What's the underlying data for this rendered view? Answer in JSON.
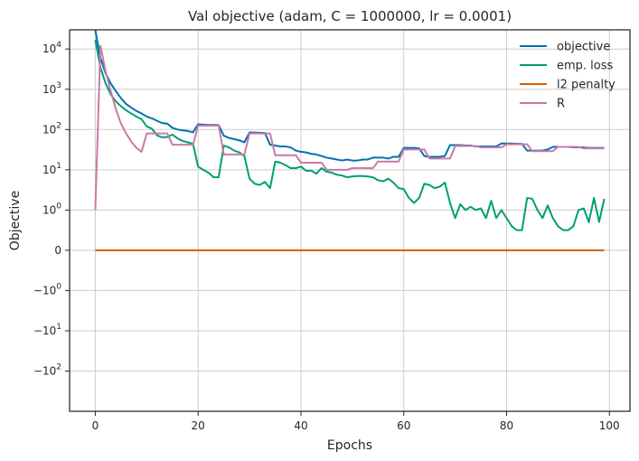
{
  "chart_data": {
    "type": "line",
    "title": "Val objective (adam, C = 1000000, lr = 0.0001)",
    "xlabel": "Epochs",
    "ylabel": "Objective",
    "xlim": [
      -5,
      104
    ],
    "ylim": [
      -1000,
      30000
    ],
    "yscale": "symlog",
    "symlog_linthresh": 1,
    "grid": true,
    "legend_position": "top-right",
    "x_ticks": [
      {
        "value": 0,
        "label": "0"
      },
      {
        "value": 20,
        "label": "20"
      },
      {
        "value": 40,
        "label": "40"
      },
      {
        "value": 60,
        "label": "60"
      },
      {
        "value": 80,
        "label": "80"
      },
      {
        "value": 100,
        "label": "100"
      }
    ],
    "y_ticks": [
      {
        "value": 10000,
        "label": "10",
        "exp": "4",
        "neg": false
      },
      {
        "value": 1000,
        "label": "10",
        "exp": "3",
        "neg": false
      },
      {
        "value": 100,
        "label": "10",
        "exp": "2",
        "neg": false
      },
      {
        "value": 10,
        "label": "10",
        "exp": "1",
        "neg": false
      },
      {
        "value": 1,
        "label": "10",
        "exp": "0",
        "neg": false
      },
      {
        "value": 0,
        "label": "0",
        "exp": "",
        "neg": false
      },
      {
        "value": -1,
        "label": "10",
        "exp": "0",
        "neg": true
      },
      {
        "value": -10,
        "label": "10",
        "exp": "1",
        "neg": true
      },
      {
        "value": -100,
        "label": "10",
        "exp": "2",
        "neg": true
      }
    ],
    "series": [
      {
        "name": "objective",
        "color": "#0072b2",
        "x": [
          0,
          1,
          2,
          3,
          4,
          5,
          6,
          7,
          8,
          9,
          10,
          11,
          12,
          13,
          14,
          15,
          16,
          17,
          18,
          19,
          20,
          21,
          22,
          23,
          24,
          25,
          26,
          27,
          28,
          29,
          30,
          31,
          32,
          33,
          34,
          35,
          36,
          37,
          38,
          39,
          40,
          41,
          42,
          43,
          44,
          45,
          46,
          47,
          48,
          49,
          50,
          51,
          52,
          53,
          54,
          55,
          56,
          57,
          58,
          59,
          60,
          61,
          62,
          63,
          64,
          65,
          66,
          67,
          68,
          69,
          70,
          71,
          72,
          73,
          74,
          75,
          76,
          77,
          78,
          79,
          80,
          81,
          82,
          83,
          84,
          85,
          86,
          87,
          88,
          89,
          90,
          91,
          92,
          93,
          94,
          95,
          96,
          97,
          98,
          99
        ],
        "values": [
          30000,
          6000,
          2500,
          1400,
          900,
          600,
          430,
          350,
          290,
          250,
          210,
          190,
          165,
          145,
          140,
          110,
          100,
          95,
          92,
          85,
          135,
          132,
          130,
          130,
          128,
          70,
          62,
          58,
          54,
          48,
          85,
          84,
          83,
          82,
          42,
          40,
          38,
          38,
          36,
          30,
          28,
          27,
          25,
          24,
          22,
          20,
          19,
          18,
          17,
          18,
          17,
          17,
          18,
          18,
          20,
          20,
          20,
          19,
          21,
          21,
          35,
          35,
          35,
          34,
          22,
          21,
          21,
          21,
          22,
          41,
          41,
          41,
          40,
          40,
          38,
          38,
          38,
          38,
          38,
          45,
          45,
          45,
          44,
          44,
          30,
          30,
          30,
          30,
          32,
          37,
          37,
          37,
          37,
          36,
          36,
          36,
          35,
          35,
          35,
          35
        ]
      },
      {
        "name": "emp. loss",
        "color": "#009e73",
        "x": [
          0,
          1,
          2,
          3,
          4,
          5,
          6,
          7,
          8,
          9,
          10,
          11,
          12,
          13,
          14,
          15,
          16,
          17,
          18,
          19,
          20,
          21,
          22,
          23,
          24,
          25,
          26,
          27,
          28,
          29,
          30,
          31,
          32,
          33,
          34,
          35,
          36,
          37,
          38,
          39,
          40,
          41,
          42,
          43,
          44,
          45,
          46,
          47,
          48,
          49,
          50,
          51,
          52,
          53,
          54,
          55,
          56,
          57,
          58,
          59,
          60,
          61,
          62,
          63,
          64,
          65,
          66,
          67,
          68,
          69,
          70,
          71,
          72,
          73,
          74,
          75,
          76,
          77,
          78,
          79,
          80,
          81,
          82,
          83,
          84,
          85,
          86,
          87,
          88,
          89,
          90,
          91,
          92,
          93,
          94,
          95,
          96,
          97,
          98,
          99
        ],
        "values": [
          17000,
          3500,
          1400,
          750,
          500,
          380,
          300,
          250,
          210,
          180,
          120,
          105,
          72,
          64,
          65,
          75,
          60,
          52,
          48,
          44,
          12,
          10,
          8.5,
          6.5,
          6.5,
          40,
          36,
          30,
          27,
          22,
          6,
          4.5,
          4.2,
          5,
          3.5,
          16,
          15,
          13,
          11,
          11,
          12,
          9.5,
          9.5,
          8,
          11,
          9,
          8.5,
          7.5,
          7.2,
          6.5,
          6.8,
          7,
          7,
          6.8,
          6.5,
          5.5,
          5.2,
          6,
          4.8,
          3.5,
          3.3,
          2,
          1.5,
          2,
          4.5,
          4.2,
          3.5,
          3.8,
          4.8,
          1.5,
          0.8,
          1.4,
          1,
          1.2,
          1,
          1.1,
          0.8,
          1.7,
          0.8,
          1,
          0.8,
          0.6,
          0.5,
          0.5,
          2,
          1.9,
          1,
          0.8,
          1.3,
          0.8,
          0.6,
          0.5,
          0.5,
          0.6,
          1,
          1.1,
          0.7,
          2,
          0.7,
          1.9
        ]
      },
      {
        "name": "l2 penalty",
        "color": "#d55e00",
        "x": [
          0,
          99
        ],
        "values": [
          0,
          0
        ]
      },
      {
        "name": "R",
        "color": "#cc79a7",
        "x": [
          0,
          1,
          2,
          3,
          4,
          5,
          6,
          7,
          8,
          9,
          10,
          11,
          12,
          13,
          14,
          15,
          16,
          17,
          18,
          19,
          20,
          21,
          22,
          23,
          24,
          25,
          26,
          27,
          28,
          29,
          30,
          31,
          32,
          33,
          34,
          35,
          36,
          37,
          38,
          39,
          40,
          41,
          42,
          43,
          44,
          45,
          46,
          47,
          48,
          49,
          50,
          51,
          52,
          53,
          54,
          55,
          56,
          57,
          58,
          59,
          60,
          61,
          62,
          63,
          64,
          65,
          66,
          67,
          68,
          69,
          70,
          71,
          72,
          73,
          74,
          75,
          76,
          77,
          78,
          79,
          80,
          81,
          82,
          83,
          84,
          85,
          86,
          87,
          88,
          89,
          90,
          91,
          92,
          93,
          94,
          95,
          96,
          97,
          98,
          99
        ],
        "values": [
          1,
          12000,
          2800,
          900,
          320,
          140,
          80,
          50,
          35,
          28,
          80,
          80,
          80,
          80,
          80,
          42,
          42,
          42,
          42,
          42,
          125,
          125,
          125,
          125,
          125,
          24,
          24,
          24,
          24,
          24,
          80,
          80,
          80,
          80,
          80,
          23,
          23,
          23,
          23,
          23,
          15,
          15,
          15,
          15,
          15,
          10,
          10,
          10,
          10,
          10,
          11,
          11,
          11,
          11,
          11,
          16,
          16,
          16,
          16,
          16,
          32,
          32,
          32,
          32,
          32,
          19,
          19,
          19,
          19,
          19,
          39,
          39,
          39,
          39,
          39,
          36,
          36,
          36,
          36,
          36,
          43,
          43,
          43,
          43,
          43,
          29,
          29,
          29,
          29,
          29,
          37,
          37,
          37,
          37,
          37,
          34,
          34,
          34,
          34,
          34
        ]
      }
    ]
  }
}
